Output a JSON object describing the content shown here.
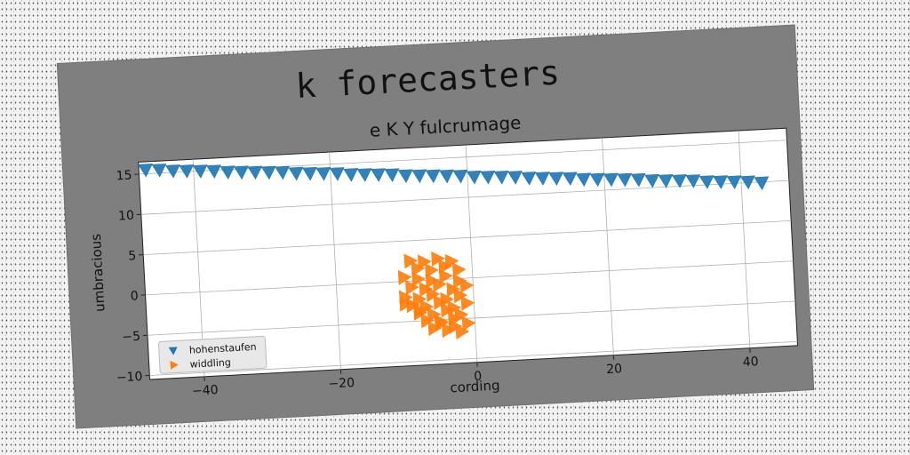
{
  "chart_data": {
    "type": "scatter",
    "title": "k forecasters",
    "subtitle": "e K Y fulcrumage",
    "xlabel": "cording",
    "ylabel": "umbracious",
    "xlim": [
      -48,
      47
    ],
    "ylim": [
      -10.5,
      16.5
    ],
    "xticks": [
      -40,
      -20,
      0,
      20,
      40
    ],
    "yticks": [
      -10,
      -5,
      0,
      5,
      10,
      15
    ],
    "grid": true,
    "legend_position": "lower-left",
    "series": [
      {
        "name": "hohenstaufen",
        "marker": "triangle-down",
        "color": "#1f77b4",
        "x": [
          -47,
          -45,
          -43,
          -41,
          -39,
          -37,
          -35,
          -33,
          -31,
          -29,
          -27,
          -25,
          -23,
          -21,
          -19,
          -17,
          -15,
          -13,
          -11,
          -9,
          -7,
          -5,
          -3,
          -1,
          1,
          3,
          5,
          7,
          9,
          11,
          13,
          15,
          17,
          19,
          21,
          23,
          25,
          27,
          29,
          31,
          33,
          35,
          37,
          39,
          41,
          43
        ],
        "y": [
          15.5,
          15.4,
          15.2,
          15.1,
          15.0,
          14.9,
          14.7,
          14.6,
          14.5,
          14.4,
          14.3,
          14.1,
          14.0,
          13.9,
          13.8,
          13.6,
          13.5,
          13.4,
          13.3,
          13.1,
          13.0,
          12.9,
          12.8,
          12.7,
          12.5,
          12.4,
          12.3,
          12.2,
          12.0,
          11.9,
          11.8,
          11.7,
          11.5,
          11.4,
          11.3,
          11.2,
          11.1,
          10.9,
          10.8,
          10.7,
          10.6,
          10.4,
          10.3,
          10.2,
          10.1,
          9.9
        ]
      },
      {
        "name": "widdling",
        "marker": "triangle-right",
        "color": "#ff7f0e",
        "x": [
          -9,
          -7,
          -5,
          -3,
          -8,
          -6,
          -4,
          -2,
          -10,
          -8,
          -6,
          -4,
          -2,
          -9,
          -7,
          -5,
          -3,
          -1,
          -10,
          -8,
          -6,
          -4,
          -2,
          -9,
          -7,
          -5,
          -3,
          -1,
          -8,
          -6,
          -4,
          -2,
          -7,
          -5,
          -3,
          -1,
          -6,
          -4,
          -2,
          -5,
          -3,
          -8,
          -10
        ],
        "y": [
          2.5,
          2.3,
          2.6,
          2.2,
          1.5,
          1.2,
          1.6,
          1.1,
          0.5,
          0.2,
          -0.1,
          0.4,
          -0.3,
          -0.8,
          -1.1,
          -0.6,
          -1.3,
          -0.9,
          -2.0,
          -2.3,
          -1.8,
          -2.5,
          -2.1,
          -3.0,
          -3.3,
          -2.8,
          -3.6,
          -3.1,
          -4.0,
          -4.3,
          -3.8,
          -4.5,
          -5.0,
          -5.4,
          -4.9,
          -5.6,
          -6.0,
          -6.3,
          -6.6,
          -5.2,
          -5.9,
          -3.7,
          -2.8
        ]
      }
    ]
  }
}
